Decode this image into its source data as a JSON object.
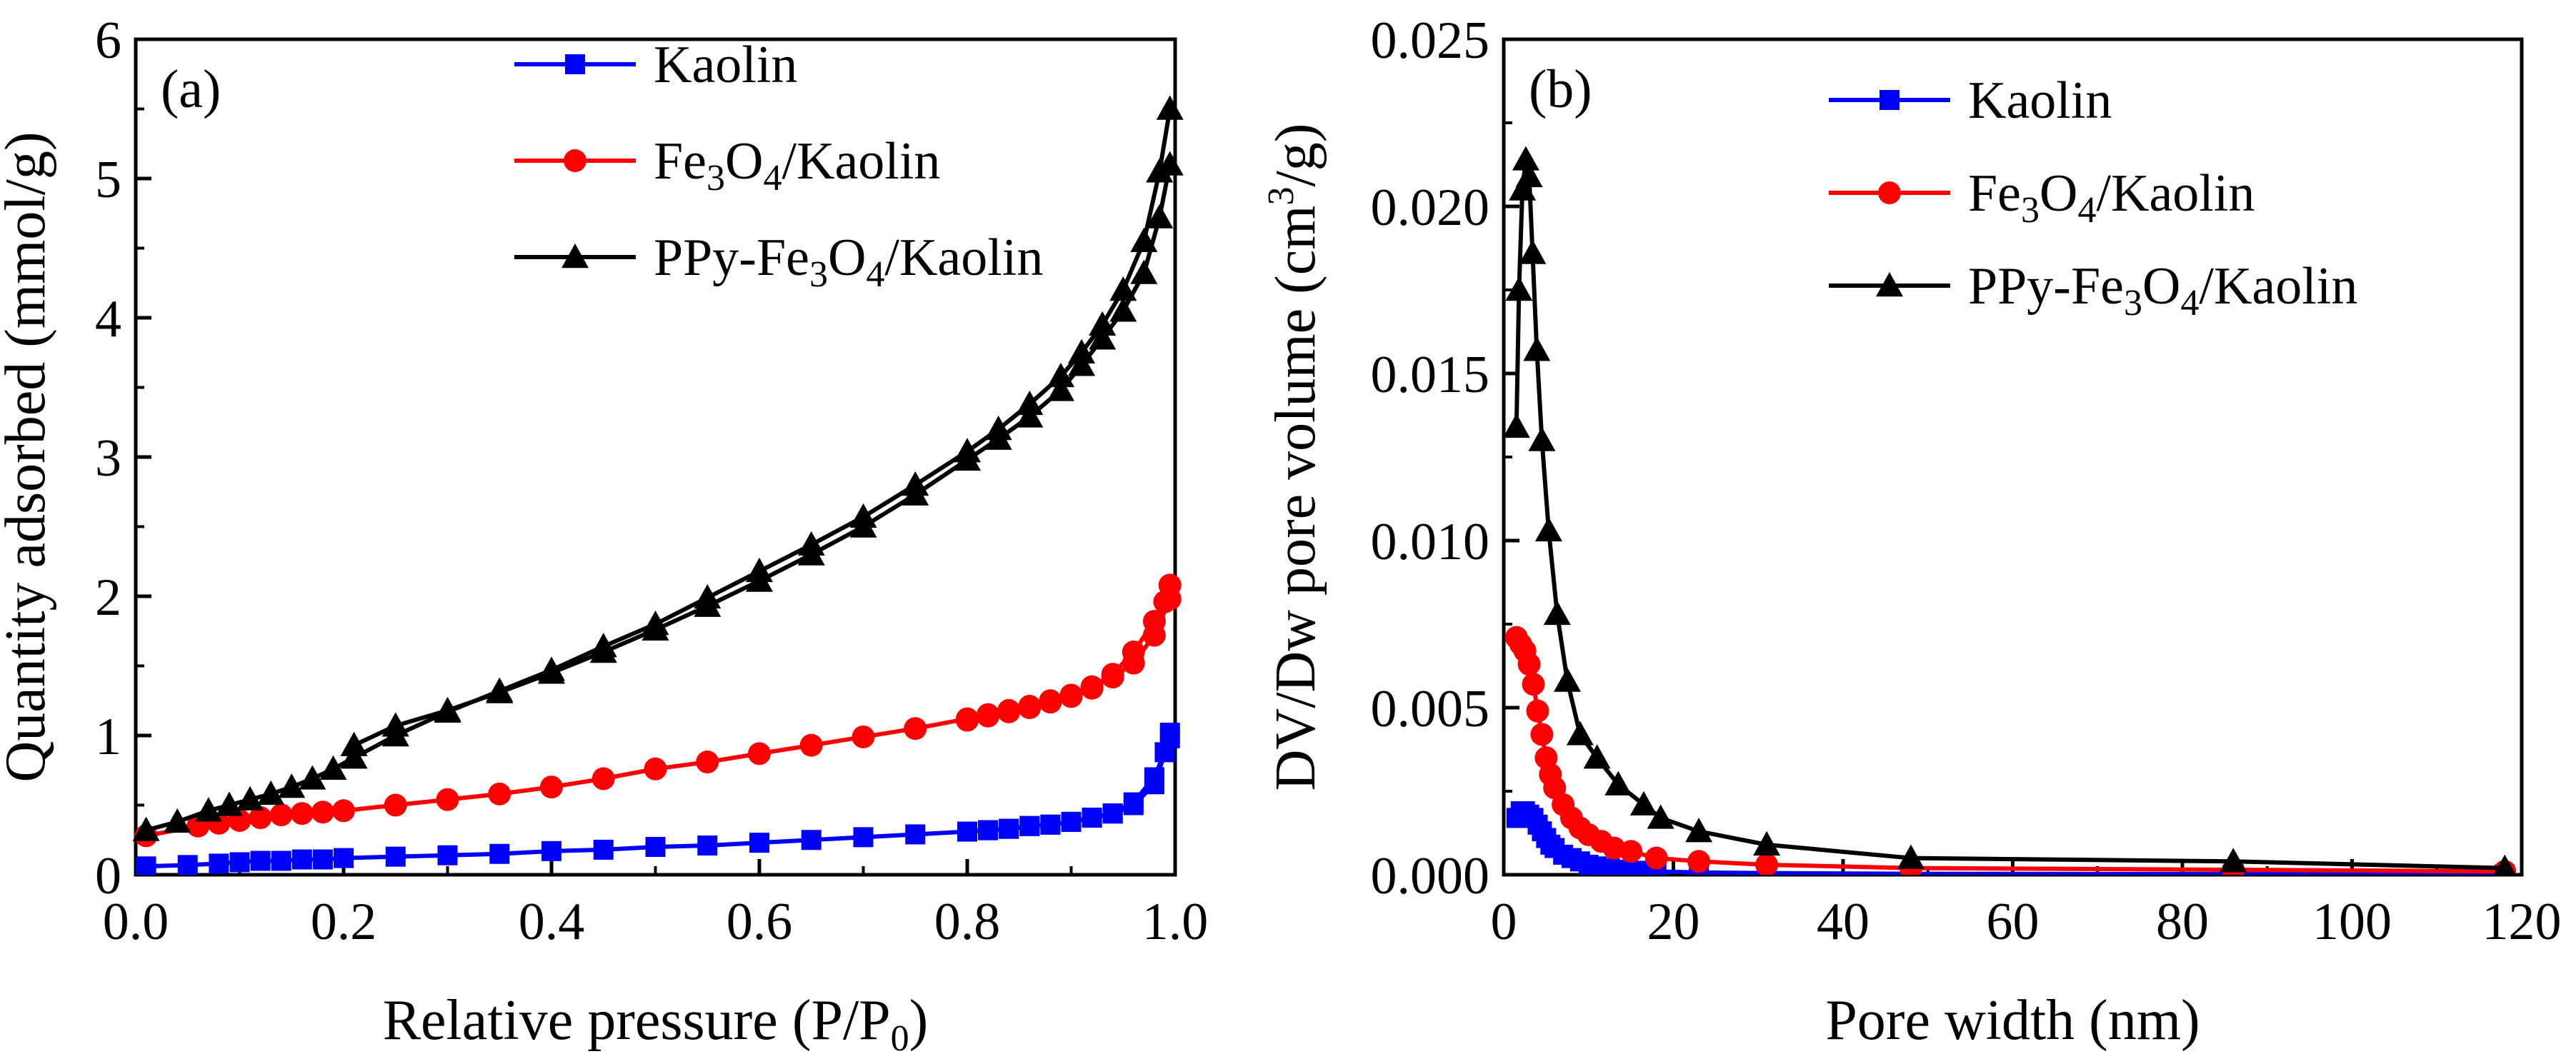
{
  "chart_data": [
    {
      "type": "line",
      "panel_label": "(a)",
      "xlabel_main": "Relative pressure (P/P",
      "xlabel_sub": "0",
      "xlabel_end": ")",
      "ylabel": "Quantity adsorbed (mmol/g)",
      "xlim": [
        0.0,
        1.0
      ],
      "ylim": [
        0,
        6
      ],
      "xticks": [
        "0.0",
        "0.2",
        "0.4",
        "0.6",
        "0.8",
        "1.0"
      ],
      "yticks": [
        "0",
        "1",
        "2",
        "3",
        "4",
        "5",
        "6"
      ],
      "xtick_values": [
        0.0,
        0.2,
        0.4,
        0.6,
        0.8,
        1.0
      ],
      "ytick_values": [
        0,
        1,
        2,
        3,
        4,
        5,
        6
      ],
      "legend_position": "top-right",
      "series": [
        {
          "name": "Kaolin",
          "legend_parts": [
            [
              "Kaolin",
              ""
            ]
          ],
          "color": "#0000ff",
          "marker": "square",
          "branches": [
            {
              "x": [
                0.01,
                0.05,
                0.08,
                0.1,
                0.12,
                0.14,
                0.16,
                0.18,
                0.2,
                0.25,
                0.3,
                0.35,
                0.4,
                0.45,
                0.5,
                0.55,
                0.6,
                0.65,
                0.7,
                0.75,
                0.8,
                0.82,
                0.84,
                0.86,
                0.88,
                0.9,
                0.92,
                0.94,
                0.96,
                0.98,
                0.99,
                0.995
              ],
              "y": [
                0.06,
                0.07,
                0.08,
                0.09,
                0.1,
                0.1,
                0.11,
                0.11,
                0.12,
                0.13,
                0.14,
                0.15,
                0.17,
                0.18,
                0.2,
                0.21,
                0.23,
                0.25,
                0.27,
                0.29,
                0.31,
                0.32,
                0.33,
                0.35,
                0.36,
                0.38,
                0.41,
                0.44,
                0.52,
                0.7,
                0.88,
                1.02
              ]
            },
            {
              "x": [
                0.995,
                0.98,
                0.96,
                0.94,
                0.92,
                0.9,
                0.88,
                0.86,
                0.84,
                0.82,
                0.8
              ],
              "y": [
                0.98,
                0.65,
                0.5,
                0.44,
                0.41,
                0.38,
                0.36,
                0.35,
                0.33,
                0.32,
                0.31
              ]
            }
          ]
        },
        {
          "name": "Fe3O4/Kaolin",
          "legend_parts": [
            [
              "Fe",
              ""
            ],
            [
              "3",
              "sub"
            ],
            [
              "O",
              ""
            ],
            [
              "4",
              "sub"
            ],
            [
              "/Kaolin",
              ""
            ]
          ],
          "color": "#ff0000",
          "marker": "circle",
          "branches": [
            {
              "x": [
                0.01,
                0.06,
                0.08,
                0.1,
                0.12,
                0.14,
                0.16,
                0.18,
                0.2,
                0.25,
                0.3,
                0.35,
                0.4,
                0.45,
                0.5,
                0.55,
                0.6,
                0.65,
                0.7,
                0.75,
                0.8,
                0.82,
                0.84,
                0.86,
                0.88,
                0.9,
                0.92,
                0.94,
                0.96,
                0.98,
                0.99,
                0.995
              ],
              "y": [
                0.28,
                0.35,
                0.37,
                0.39,
                0.41,
                0.43,
                0.44,
                0.45,
                0.46,
                0.5,
                0.54,
                0.58,
                0.63,
                0.69,
                0.76,
                0.81,
                0.87,
                0.93,
                0.99,
                1.05,
                1.12,
                1.15,
                1.18,
                1.21,
                1.25,
                1.29,
                1.35,
                1.44,
                1.6,
                1.82,
                1.96,
                2.08
              ]
            },
            {
              "x": [
                0.995,
                0.98,
                0.96,
                0.94,
                0.92,
                0.9,
                0.88,
                0.86,
                0.84,
                0.82,
                0.8
              ],
              "y": [
                1.98,
                1.72,
                1.52,
                1.42,
                1.34,
                1.28,
                1.24,
                1.2,
                1.17,
                1.14,
                1.11
              ]
            }
          ]
        },
        {
          "name": "PPy-Fe3O4/Kaolin",
          "legend_parts": [
            [
              "PPy-Fe",
              ""
            ],
            [
              "3",
              "sub"
            ],
            [
              "O",
              ""
            ],
            [
              "4",
              "sub"
            ],
            [
              "/Kaolin",
              ""
            ]
          ],
          "color": "#000000",
          "marker": "triangle",
          "branches": [
            {
              "x": [
                0.01,
                0.04,
                0.07,
                0.09,
                0.11,
                0.13,
                0.15,
                0.17,
                0.19,
                0.21,
                0.25,
                0.3,
                0.35,
                0.4,
                0.45,
                0.5,
                0.55,
                0.6,
                0.65,
                0.7,
                0.75,
                0.8,
                0.83,
                0.86,
                0.89,
                0.91,
                0.93,
                0.95,
                0.97,
                0.985,
                0.995
              ],
              "y": [
                0.32,
                0.38,
                0.46,
                0.5,
                0.54,
                0.58,
                0.63,
                0.69,
                0.76,
                0.84,
                1.0,
                1.17,
                1.32,
                1.47,
                1.64,
                1.8,
                1.99,
                2.18,
                2.37,
                2.57,
                2.8,
                3.04,
                3.2,
                3.38,
                3.58,
                3.75,
                3.95,
                4.2,
                4.55,
                5.05,
                5.5
              ]
            },
            {
              "x": [
                0.995,
                0.985,
                0.97,
                0.95,
                0.93,
                0.91,
                0.89,
                0.86,
                0.83,
                0.8,
                0.75,
                0.7,
                0.65,
                0.6,
                0.55,
                0.5,
                0.45,
                0.4,
                0.35,
                0.3,
                0.25,
                0.21
              ],
              "y": [
                5.1,
                4.72,
                4.32,
                4.05,
                3.85,
                3.66,
                3.48,
                3.29,
                3.13,
                2.98,
                2.73,
                2.5,
                2.3,
                2.11,
                1.93,
                1.76,
                1.6,
                1.45,
                1.31,
                1.18,
                1.07,
                0.93
              ]
            }
          ]
        }
      ]
    },
    {
      "type": "line",
      "panel_label": "(b)",
      "xlabel": "Pore width (nm)",
      "ylabel_main": "DV/Dw pore volume (cm",
      "ylabel_sup": "3",
      "ylabel_end": "/g)",
      "xlim": [
        0,
        120
      ],
      "ylim": [
        0,
        0.025
      ],
      "xticks": [
        "0",
        "20",
        "40",
        "60",
        "80",
        "100",
        "120"
      ],
      "yticks": [
        "0.000",
        "0.005",
        "0.010",
        "0.015",
        "0.020",
        "0.025"
      ],
      "xtick_values": [
        0,
        20,
        40,
        60,
        80,
        100,
        120
      ],
      "ytick_values": [
        0,
        0.005,
        0.01,
        0.015,
        0.02,
        0.025
      ],
      "legend_position": "top-right",
      "series": [
        {
          "name": "Kaolin",
          "legend_parts": [
            [
              "Kaolin",
              ""
            ]
          ],
          "color": "#0000ff",
          "marker": "square",
          "branches": [
            {
              "x": [
                1.5,
                2.0,
                2.5,
                3.0,
                3.5,
                4.0,
                4.5,
                5.0,
                5.5,
                6.0,
                7.0,
                8.0,
                9.0,
                10.0,
                11.0,
                12.5,
                14.0,
                16.0,
                18.0,
                23.0,
                31.0,
                48.0,
                86.0,
                118.0
              ],
              "y": [
                0.0017,
                0.0019,
                0.0019,
                0.0018,
                0.0017,
                0.0015,
                0.0013,
                0.0011,
                0.0009,
                0.0008,
                0.0006,
                0.0005,
                0.0004,
                0.0003,
                0.00025,
                0.0002,
                0.00015,
                0.00012,
                0.0001,
                7e-05,
                5e-05,
                3e-05,
                2e-05,
                1e-05
              ]
            }
          ]
        },
        {
          "name": "Fe3O4/Kaolin",
          "legend_parts": [
            [
              "Fe",
              ""
            ],
            [
              "3",
              "sub"
            ],
            [
              "O",
              ""
            ],
            [
              "4",
              "sub"
            ],
            [
              "/Kaolin",
              ""
            ]
          ],
          "color": "#ff0000",
          "marker": "circle",
          "branches": [
            {
              "x": [
                1.5,
                2.0,
                2.5,
                3.0,
                3.5,
                4.0,
                4.5,
                5.0,
                5.5,
                6.0,
                7.0,
                8.0,
                9.0,
                10.0,
                11.5,
                13.0,
                15.0,
                18.0,
                23.0,
                31.0,
                48.0,
                86.0,
                118.0
              ],
              "y": [
                0.0071,
                0.0069,
                0.0067,
                0.0063,
                0.0057,
                0.0049,
                0.0042,
                0.0035,
                0.003,
                0.0026,
                0.0021,
                0.0017,
                0.0014,
                0.0012,
                0.001,
                0.0008,
                0.0007,
                0.0005,
                0.0004,
                0.0003,
                0.0002,
                0.00015,
                0.0001
              ]
            }
          ]
        },
        {
          "name": "PPy-Fe3O4/Kaolin",
          "legend_parts": [
            [
              "PPy-Fe",
              ""
            ],
            [
              "3",
              "sub"
            ],
            [
              "O",
              ""
            ],
            [
              "4",
              "sub"
            ],
            [
              "/Kaolin",
              ""
            ]
          ],
          "color": "#000000",
          "marker": "triangle",
          "branches": [
            {
              "x": [
                1.5,
                1.8,
                2.2,
                2.6,
                3.0,
                3.4,
                3.9,
                4.5,
                5.3,
                6.3,
                7.5,
                9.0,
                11.0,
                13.5,
                16.5,
                18.5,
                23.0,
                31.0,
                48.0,
                86.0,
                118.0
              ],
              "y": [
                0.0134,
                0.0175,
                0.0205,
                0.0214,
                0.0209,
                0.0186,
                0.0157,
                0.013,
                0.0103,
                0.0078,
                0.0058,
                0.0042,
                0.0035,
                0.0027,
                0.0021,
                0.0017,
                0.0013,
                0.0009,
                0.0005,
                0.0004,
                0.0002
              ]
            }
          ]
        }
      ]
    }
  ]
}
